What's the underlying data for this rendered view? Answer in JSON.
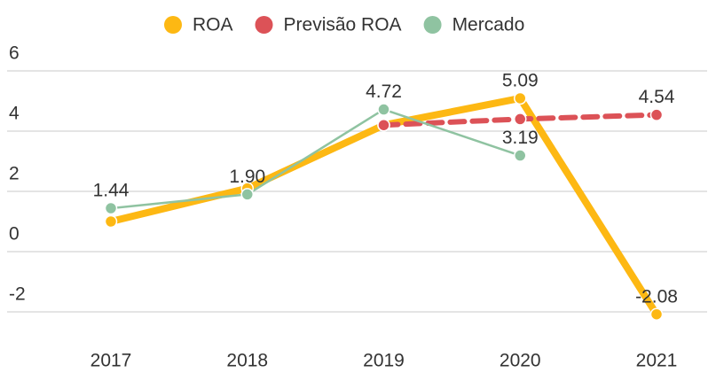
{
  "chart_data": {
    "type": "line",
    "categories": [
      "2017",
      "2018",
      "2019",
      "2020",
      "2021"
    ],
    "series": [
      {
        "name": "ROA",
        "color": "#fdb813",
        "style": "solid",
        "values": [
          1.0,
          2.1,
          4.2,
          5.09,
          -2.08
        ],
        "value_labels": [
          null,
          null,
          null,
          "5.09",
          "-2.08"
        ]
      },
      {
        "name": "Previsão ROA",
        "color": "#dc5257",
        "style": "dashed",
        "values": [
          null,
          null,
          4.2,
          4.4,
          4.54
        ],
        "value_labels": [
          null,
          null,
          null,
          null,
          "4.54"
        ]
      },
      {
        "name": "Mercado",
        "color": "#8fc3a1",
        "style": "thin",
        "values": [
          1.44,
          1.9,
          4.72,
          3.19,
          null
        ],
        "value_labels": [
          "1.44",
          "1.90",
          "4.72",
          "3.19",
          null
        ]
      }
    ],
    "ylim": [
      -2,
      6
    ],
    "yticks": [
      -2,
      0,
      2,
      4,
      6
    ],
    "grid": true,
    "legend": "top"
  }
}
